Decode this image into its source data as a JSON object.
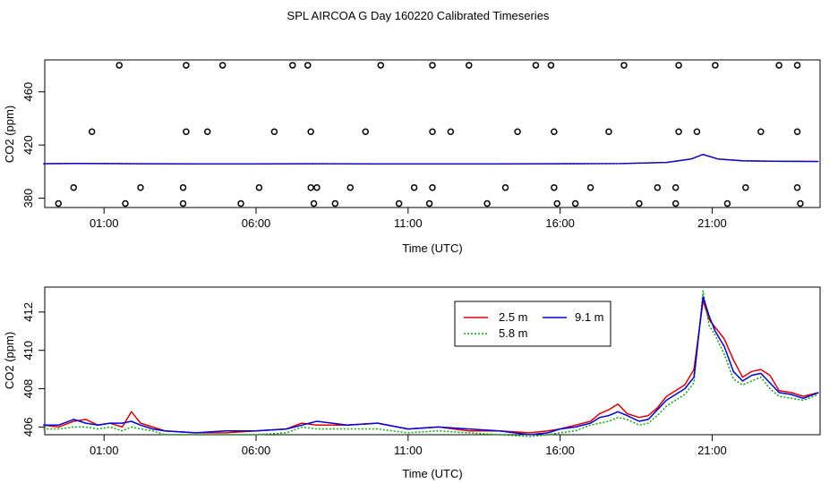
{
  "title": "SPL AIRCOA G  Day 160220  Calibrated Timeseries",
  "colors": {
    "series_2_5m": "#e00000",
    "series_5_8m": "#00b000",
    "series_9_1m": "#0000e0",
    "points": "#000000"
  },
  "chart_data": [
    {
      "type": "scatter",
      "xlabel": "Time (UTC)",
      "ylabel": "CO2 (ppm)",
      "xticks": [
        1,
        6,
        11,
        16,
        21
      ],
      "xtick_labels": [
        "01:00",
        "06:00",
        "11:00",
        "16:00",
        "21:00"
      ],
      "yticks": [
        380,
        420,
        460
      ],
      "xlim": [
        -0.95,
        24.55
      ],
      "ylim": [
        373,
        484
      ],
      "grid": false,
      "points": [
        [
          1.5,
          480
        ],
        [
          3.7,
          480
        ],
        [
          4.9,
          480
        ],
        [
          7.2,
          480
        ],
        [
          7.7,
          480
        ],
        [
          10.1,
          480
        ],
        [
          11.8,
          480
        ],
        [
          13.0,
          480
        ],
        [
          15.2,
          480
        ],
        [
          15.7,
          480
        ],
        [
          18.1,
          480
        ],
        [
          19.9,
          480
        ],
        [
          21.1,
          480
        ],
        [
          23.2,
          480
        ],
        [
          23.8,
          480
        ],
        [
          0.6,
          430
        ],
        [
          3.7,
          430
        ],
        [
          4.4,
          430
        ],
        [
          6.6,
          430
        ],
        [
          7.8,
          430
        ],
        [
          9.6,
          430
        ],
        [
          11.8,
          430
        ],
        [
          12.4,
          430
        ],
        [
          14.6,
          430
        ],
        [
          15.8,
          430
        ],
        [
          17.6,
          430
        ],
        [
          19.9,
          430
        ],
        [
          20.5,
          430
        ],
        [
          22.6,
          430
        ],
        [
          23.8,
          430
        ],
        [
          0.0,
          388
        ],
        [
          2.2,
          388
        ],
        [
          3.6,
          388
        ],
        [
          6.1,
          388
        ],
        [
          7.8,
          388
        ],
        [
          8.0,
          388
        ],
        [
          9.1,
          388
        ],
        [
          11.2,
          388
        ],
        [
          11.8,
          388
        ],
        [
          14.2,
          388
        ],
        [
          15.8,
          388
        ],
        [
          17.0,
          388
        ],
        [
          19.2,
          388
        ],
        [
          19.8,
          388
        ],
        [
          22.1,
          388
        ],
        [
          23.8,
          388
        ],
        [
          -0.5,
          376
        ],
        [
          1.7,
          376
        ],
        [
          3.6,
          376
        ],
        [
          5.5,
          376
        ],
        [
          7.9,
          376
        ],
        [
          8.6,
          376
        ],
        [
          10.7,
          376
        ],
        [
          11.7,
          376
        ],
        [
          13.6,
          376
        ],
        [
          15.9,
          376
        ],
        [
          16.5,
          376
        ],
        [
          18.6,
          376
        ],
        [
          19.8,
          376
        ],
        [
          21.5,
          376
        ],
        [
          23.9,
          376
        ]
      ],
      "series": [
        {
          "name": "2.5 m",
          "x": [
            -1,
            0,
            2,
            4,
            6,
            8,
            10,
            12,
            14,
            16,
            18,
            19.5,
            20.3,
            20.7,
            21.2,
            22,
            23,
            24.5
          ],
          "values": [
            406.0,
            406.2,
            406.0,
            405.9,
            405.9,
            406.0,
            405.9,
            405.9,
            405.9,
            406.0,
            406.1,
            407.0,
            409.5,
            413.0,
            409.5,
            408.2,
            407.9,
            407.7
          ]
        },
        {
          "name": "5.8 m",
          "x": [
            -1,
            0,
            2,
            4,
            6,
            8,
            10,
            12,
            14,
            16,
            18,
            19.5,
            20.3,
            20.7,
            21.2,
            22,
            23,
            24.5
          ],
          "values": [
            405.8,
            406.0,
            405.8,
            405.7,
            405.7,
            405.8,
            405.7,
            405.7,
            405.7,
            405.8,
            405.9,
            406.8,
            409.3,
            412.8,
            409.3,
            408.0,
            407.7,
            407.5
          ]
        },
        {
          "name": "9.1 m",
          "x": [
            -1,
            0,
            2,
            4,
            6,
            8,
            10,
            12,
            14,
            16,
            18,
            19.5,
            20.3,
            20.7,
            21.2,
            22,
            23,
            24.5
          ],
          "values": [
            405.9,
            406.1,
            405.9,
            405.8,
            405.8,
            405.9,
            405.8,
            405.8,
            405.8,
            405.9,
            406.0,
            406.9,
            409.4,
            412.9,
            409.4,
            408.1,
            407.8,
            407.6
          ]
        }
      ]
    },
    {
      "type": "line",
      "xlabel": "Time (UTC)",
      "ylabel": "CO2 (ppm)",
      "xticks": [
        1,
        6,
        11,
        16,
        21
      ],
      "xtick_labels": [
        "01:00",
        "06:00",
        "11:00",
        "16:00",
        "21:00"
      ],
      "yticks": [
        406,
        408,
        410,
        412
      ],
      "xlim": [
        -0.95,
        24.55
      ],
      "ylim": [
        405.6,
        413.3
      ],
      "grid": false,
      "legend": "top-center",
      "series": [
        {
          "name": "2.5 m",
          "color": "#e00000",
          "x": [
            -1,
            -0.5,
            0,
            0.4,
            0.8,
            1.2,
            1.6,
            1.9,
            2.2,
            2.6,
            3.0,
            4,
            5,
            6,
            7,
            7.5,
            8,
            9,
            10,
            11,
            12,
            13,
            14,
            15,
            15.6,
            16,
            16.5,
            17,
            17.3,
            17.6,
            17.9,
            18.2,
            18.6,
            18.9,
            19.2,
            19.5,
            19.8,
            20.1,
            20.4,
            20.7,
            20.9,
            21.1,
            21.4,
            21.7,
            22.0,
            22.3,
            22.6,
            22.9,
            23.2,
            23.6,
            24.0,
            24.5
          ],
          "values": [
            406.1,
            406.0,
            406.3,
            406.4,
            406.1,
            406.2,
            406.0,
            406.8,
            406.2,
            406.0,
            405.8,
            405.7,
            405.7,
            405.8,
            405.9,
            406.2,
            406.1,
            406.1,
            406.2,
            405.9,
            406.0,
            405.8,
            405.8,
            405.7,
            405.8,
            405.9,
            406.1,
            406.3,
            406.7,
            406.9,
            407.2,
            406.7,
            406.5,
            406.6,
            407.0,
            407.6,
            407.9,
            408.2,
            409.0,
            412.6,
            411.6,
            411.2,
            410.6,
            409.5,
            408.6,
            408.9,
            409.0,
            408.7,
            407.9,
            407.8,
            407.6,
            407.8
          ]
        },
        {
          "name": "5.8 m",
          "color": "#00b000",
          "x": [
            -1,
            -0.5,
            0,
            0.4,
            0.8,
            1.2,
            1.6,
            1.9,
            2.2,
            2.6,
            3.0,
            4,
            5,
            6,
            7,
            7.5,
            8,
            9,
            10,
            11,
            12,
            13,
            14,
            15,
            15.6,
            16,
            16.5,
            17,
            17.3,
            17.6,
            17.9,
            18.2,
            18.6,
            18.9,
            19.2,
            19.5,
            19.8,
            20.1,
            20.4,
            20.7,
            20.9,
            21.1,
            21.4,
            21.7,
            22.0,
            22.3,
            22.6,
            22.9,
            23.2,
            23.6,
            24.0,
            24.5
          ],
          "values": [
            405.9,
            405.9,
            406.0,
            406.0,
            405.9,
            406.0,
            405.8,
            406.0,
            405.9,
            405.8,
            405.6,
            405.6,
            405.6,
            405.6,
            405.7,
            406.0,
            405.9,
            405.9,
            405.9,
            405.7,
            405.8,
            405.7,
            405.6,
            405.5,
            405.6,
            405.7,
            405.8,
            406.1,
            406.2,
            406.3,
            406.5,
            406.4,
            406.1,
            406.2,
            406.6,
            407.1,
            407.4,
            407.7,
            408.3,
            413.1,
            411.3,
            410.8,
            409.8,
            408.5,
            408.2,
            408.4,
            408.6,
            408.0,
            407.6,
            407.5,
            407.4,
            407.7
          ]
        },
        {
          "name": "9.1 m",
          "color": "#0000e0",
          "x": [
            -1,
            -0.5,
            0,
            0.4,
            0.8,
            1.2,
            1.6,
            1.9,
            2.2,
            2.6,
            3.0,
            4,
            5,
            6,
            7,
            7.5,
            8,
            9,
            10,
            11,
            12,
            13,
            14,
            15,
            15.6,
            16,
            16.5,
            17,
            17.3,
            17.6,
            17.9,
            18.2,
            18.6,
            18.9,
            19.2,
            19.5,
            19.8,
            20.1,
            20.4,
            20.7,
            20.9,
            21.1,
            21.4,
            21.7,
            22.0,
            22.3,
            22.6,
            22.9,
            23.2,
            23.6,
            24.0,
            24.5
          ],
          "values": [
            406.1,
            406.1,
            406.4,
            406.2,
            406.1,
            406.2,
            406.2,
            406.3,
            406.1,
            405.9,
            405.8,
            405.7,
            405.8,
            405.8,
            405.9,
            406.1,
            406.3,
            406.1,
            406.2,
            405.9,
            406.0,
            405.9,
            405.8,
            405.6,
            405.7,
            405.9,
            406.0,
            406.2,
            406.5,
            406.6,
            406.8,
            406.6,
            406.3,
            406.4,
            406.9,
            407.4,
            407.7,
            408.0,
            408.6,
            412.8,
            411.8,
            411.0,
            410.2,
            408.9,
            408.4,
            408.7,
            408.8,
            408.3,
            407.8,
            407.7,
            407.5,
            407.8
          ]
        }
      ]
    }
  ]
}
